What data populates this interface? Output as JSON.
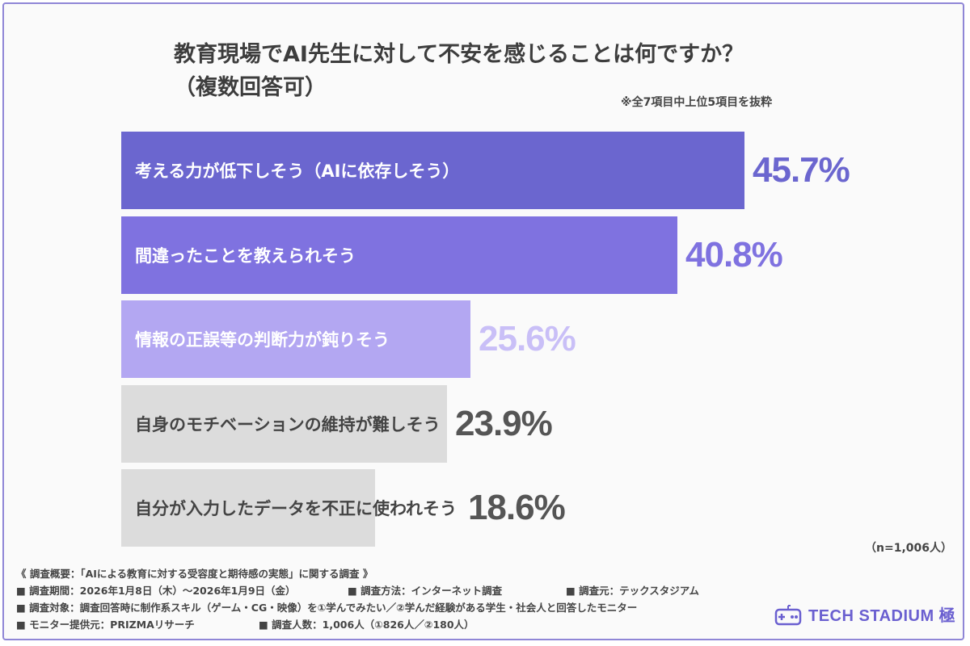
{
  "title": {
    "line1": "教育現場でAI先生に対して不安を感じることは何ですか？",
    "line2": "（複数回答可）"
  },
  "note": "※全7項目中上位5項目を抜粋",
  "colors": {
    "bar1": "#6b66cf",
    "bar2": "#7f72e0",
    "bar3": "#b3a7f2",
    "bar4": "#dcdcdc",
    "bar5": "#dcdcdc",
    "value1": "#6b66cf",
    "value2": "#7f72e0",
    "value3": "#c9bff7",
    "value4": "#555555",
    "value5": "#555555",
    "labelOnDark": "#ffffff",
    "labelOnLight": "#444444"
  },
  "chart_data": {
    "type": "bar",
    "orientation": "horizontal",
    "unit": "%",
    "xlim": [
      0,
      60
    ],
    "categories": [
      "考える力が低下しそう（AIに依存しそう）",
      "間違ったことを教えられそう",
      "情報の正誤等の判断力が鈍りそう",
      "自身のモチベーションの維持が難しそう",
      "自分が入力したデータを不正に使われそう"
    ],
    "values": [
      45.7,
      40.8,
      25.6,
      23.9,
      18.6
    ],
    "value_labels": [
      "45.7%",
      "40.8%",
      "25.6%",
      "23.9%",
      "18.6%"
    ]
  },
  "sample_size": "（n=1,006人）",
  "footer": {
    "survey_title": "《 調査概要：「AIによる教育に対する受容度と期待感の実態」に関する調査 》",
    "period": "■ 調査期間：2026年1月8日（木）〜2026年1月9日（金）",
    "method": "■ 調査方法：インターネット調査",
    "source": "■ 調査元：テックスタジアム",
    "target": "■ 調査対象：調査回答時に制作系スキル（ゲーム・CG・映像）を①学んでみたい／②学んだ経験がある学生・社会人と回答したモニター",
    "provider": "■ モニター提供元：PRIZMAリサーチ",
    "count": "■ 調査人数：1,006人（①826人／②180人）"
  },
  "logo": {
    "text": "TECH STADIUM 極",
    "icon": "gamepad-icon"
  }
}
